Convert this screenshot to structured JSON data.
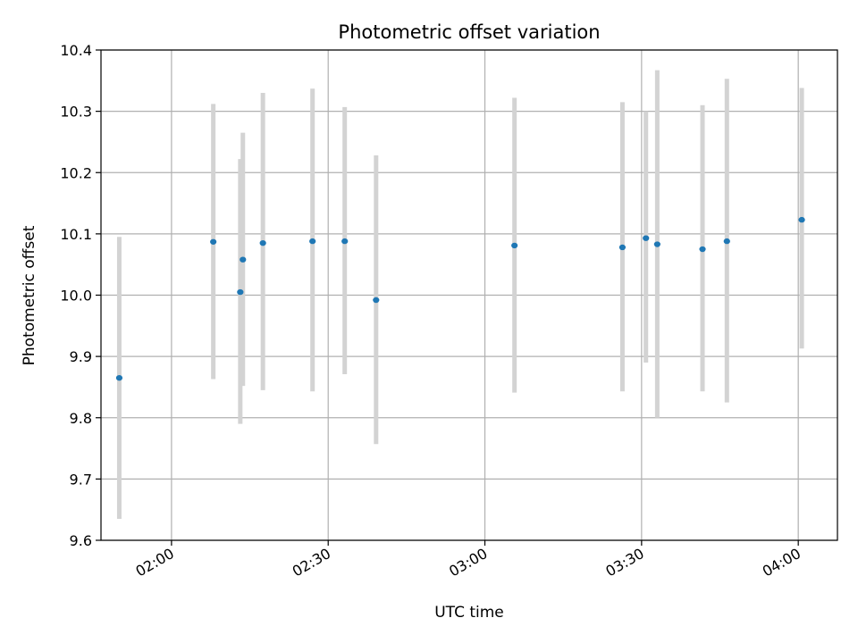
{
  "chart_data": {
    "type": "scatter",
    "title": "Photometric offset variation",
    "xlabel": "UTC time",
    "ylabel": "Photometric offset",
    "xlim": [
      "01:46:30",
      "04:07:30"
    ],
    "ylim": [
      9.6,
      10.4
    ],
    "grid": true,
    "x_ticks": [
      "02:00",
      "02:30",
      "03:00",
      "03:30",
      "04:00"
    ],
    "y_ticks": [
      "9.6",
      "9.7",
      "9.8",
      "9.9",
      "10.0",
      "10.1",
      "10.2",
      "10.3",
      "10.4"
    ],
    "marker_color": "#1f77b4",
    "errorbar_color": "#d3d3d3",
    "points": [
      {
        "x": "01:50:00",
        "y": 9.865,
        "err_low": 9.635,
        "err_high": 10.095
      },
      {
        "x": "02:08:00",
        "y": 10.087,
        "err_low": 9.863,
        "err_high": 10.312
      },
      {
        "x": "02:13:10",
        "y": 10.005,
        "err_low": 9.79,
        "err_high": 10.222
      },
      {
        "x": "02:13:40",
        "y": 10.058,
        "err_low": 9.852,
        "err_high": 10.265
      },
      {
        "x": "02:17:30",
        "y": 10.085,
        "err_low": 9.845,
        "err_high": 10.33
      },
      {
        "x": "02:27:00",
        "y": 10.088,
        "err_low": 9.843,
        "err_high": 10.337
      },
      {
        "x": "02:33:10",
        "y": 10.088,
        "err_low": 9.871,
        "err_high": 10.307
      },
      {
        "x": "02:39:10",
        "y": 9.992,
        "err_low": 9.757,
        "err_high": 10.228
      },
      {
        "x": "03:05:40",
        "y": 10.081,
        "err_low": 9.841,
        "err_high": 10.322
      },
      {
        "x": "03:26:20",
        "y": 10.078,
        "err_low": 9.843,
        "err_high": 10.315
      },
      {
        "x": "03:30:50",
        "y": 10.093,
        "err_low": 9.89,
        "err_high": 10.3
      },
      {
        "x": "03:33:00",
        "y": 10.083,
        "err_low": 9.8,
        "err_high": 10.367
      },
      {
        "x": "03:41:40",
        "y": 10.075,
        "err_low": 9.843,
        "err_high": 10.31
      },
      {
        "x": "03:46:20",
        "y": 10.088,
        "err_low": 9.825,
        "err_high": 10.353
      },
      {
        "x": "04:00:40",
        "y": 10.123,
        "err_low": 9.913,
        "err_high": 10.338
      }
    ]
  }
}
